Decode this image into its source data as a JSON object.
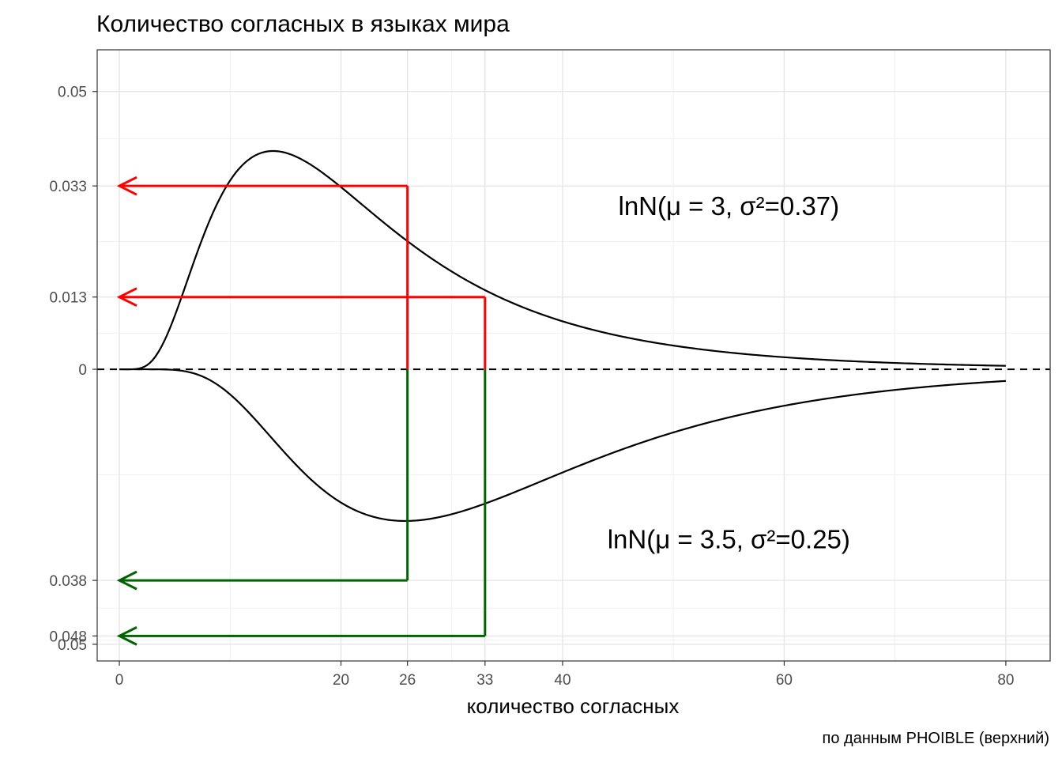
{
  "chart_data": {
    "type": "line",
    "title": "Количество согласных в языках мира",
    "xlabel": "количество согласных",
    "ylabel": "",
    "caption": "по данным PHOIBLE (верхний)",
    "xlim": [
      -2,
      84
    ],
    "ylim": [
      -0.0525,
      0.0575
    ],
    "x_ticks": [
      0,
      20,
      26,
      33,
      40,
      60,
      80
    ],
    "x_minor_gridlines": [
      10,
      30,
      50,
      70
    ],
    "y_ticks": [
      {
        "label": "0.05",
        "value": 0.05
      },
      {
        "label": "0.033",
        "value": 0.033
      },
      {
        "label": "0.013",
        "value": 0.013
      },
      {
        "label": "0",
        "value": 0
      },
      {
        "label": "0.038",
        "value": -0.038
      },
      {
        "label": "0.048",
        "value": -0.048
      },
      {
        "label": "0.05",
        "value": -0.0495
      }
    ],
    "grid": true,
    "zero_line": "dashed",
    "series": [
      {
        "mu": 3,
        "sigma2": 0.37,
        "direction": "up",
        "color": "#000000"
      },
      {
        "mu": 3.5,
        "sigma2": 0.25,
        "direction": "down",
        "color": "#000000"
      }
    ],
    "annotations": [
      {
        "text": "lnN(μ = 3, σ²=0.37)",
        "x": 55,
        "y": 0.0295
      },
      {
        "text": "lnN(μ = 3.5, σ²=0.25)",
        "x": 55,
        "y": -0.0305
      }
    ],
    "marker_lines": [
      {
        "x": 26,
        "y": 0.033,
        "color": "#ff0000"
      },
      {
        "x": 33,
        "y": 0.013,
        "color": "#ff0000"
      },
      {
        "x": 26,
        "y": -0.038,
        "color": "#006400"
      },
      {
        "x": 33,
        "y": -0.048,
        "color": "#006400"
      }
    ]
  }
}
